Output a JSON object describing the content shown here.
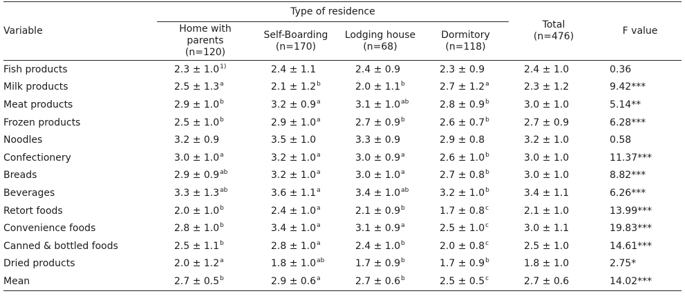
{
  "header": {
    "variable": "Variable",
    "group": "Type of residence",
    "col1": [
      "Home with",
      "parents",
      "(n=120)"
    ],
    "col2": [
      "Self-Boarding",
      "(n=170)"
    ],
    "col3": [
      "Lodging house",
      "(n=68)"
    ],
    "col4": [
      "Dormitory",
      "(n=118)"
    ],
    "total": [
      "Total",
      "(n=476)"
    ],
    "fvalue": "F value"
  },
  "rows": [
    {
      "variable": "Fish products",
      "c1": "2.3 ± 1.0",
      "s1": "1)",
      "c2": "2.4 ± 1.1",
      "s2": "",
      "c3": "2.4 ± 0.9",
      "s3": "",
      "c4": "2.3 ± 0.9",
      "s4": "",
      "total": "2.4 ± 1.0",
      "f": "0.36"
    },
    {
      "variable": "Milk products",
      "c1": "2.5 ± 1.3",
      "s1": "a",
      "c2": "2.1 ± 1.2",
      "s2": "b",
      "c3": "2.0 ± 1.1",
      "s3": "b",
      "c4": "2.7 ± 1.2",
      "s4": "a",
      "total": "2.3 ± 1.2",
      "f": "9.42***"
    },
    {
      "variable": "Meat products",
      "c1": "2.9 ± 1.0",
      "s1": "b",
      "c2": "3.2 ± 0.9",
      "s2": "a",
      "c3": "3.1 ± 1.0",
      "s3": "ab",
      "c4": "2.8 ± 0.9",
      "s4": "b",
      "total": "3.0 ± 1.0",
      "f": "5.14**"
    },
    {
      "variable": "Frozen products",
      "c1": "2.5 ± 1.0",
      "s1": "b",
      "c2": "2.9 ± 1.0",
      "s2": "a",
      "c3": "2.7 ± 0.9",
      "s3": "b",
      "c4": "2.6 ± 0.7",
      "s4": "b",
      "total": "2.7 ± 0.9",
      "f": "6.28***"
    },
    {
      "variable": "Noodles",
      "c1": "3.2 ± 0.9",
      "s1": "",
      "c2": "3.5 ± 1.0",
      "s2": "",
      "c3": "3.3 ± 0.9",
      "s3": "",
      "c4": "2.9 ± 0.8",
      "s4": "",
      "total": "3.2 ± 1.0",
      "f": "0.58"
    },
    {
      "variable": "Confectionery",
      "c1": "3.0 ± 1.0",
      "s1": "a",
      "c2": "3.2 ± 1.0",
      "s2": "a",
      "c3": "3.0 ± 0.9",
      "s3": "a",
      "c4": "2.6 ± 1.0",
      "s4": "b",
      "total": "3.0 ± 1.0",
      "f": "11.37***"
    },
    {
      "variable": "Breads",
      "c1": "2.9 ± 0.9",
      "s1": "ab",
      "c2": "3.2 ± 1.0",
      "s2": "a",
      "c3": "3.0 ± 1.0",
      "s3": "a",
      "c4": "2.7 ± 0.8",
      "s4": "b",
      "total": "3.0 ± 1.0",
      "f": "8.82***"
    },
    {
      "variable": "Beverages",
      "c1": "3.3 ± 1.3",
      "s1": "ab",
      "c2": "3.6 ± 1.1",
      "s2": "a",
      "c3": "3.4 ± 1.0",
      "s3": "ab",
      "c4": "3.2 ± 1.0",
      "s4": "b",
      "total": "3.4 ± 1.1",
      "f": "6.26***"
    },
    {
      "variable": "Retort foods",
      "c1": "2.0 ± 1.0",
      "s1": "b",
      "c2": "2.4 ± 1.0",
      "s2": "a",
      "c3": "2.1 ± 0.9",
      "s3": "b",
      "c4": "1.7 ± 0.8",
      "s4": "c",
      "total": "2.1 ± 1.0",
      "f": "13.99***"
    },
    {
      "variable": "Convenience foods",
      "c1": "2.8 ± 1.0",
      "s1": "b",
      "c2": "3.4 ± 1.0",
      "s2": "a",
      "c3": "3.1 ± 0.9",
      "s3": "a",
      "c4": "2.5 ± 1.0",
      "s4": "c",
      "total": "3.0 ± 1.1",
      "f": "19.83***"
    },
    {
      "variable": "Canned & bottled foods",
      "c1": "2.5 ± 1.1",
      "s1": "b",
      "c2": "2.8 ± 1.0",
      "s2": "a",
      "c3": "2.4 ± 1.0",
      "s3": "b",
      "c4": "2.0 ± 0.8",
      "s4": "c",
      "total": "2.5 ± 1.0",
      "f": "14.61***"
    },
    {
      "variable": "Dried products",
      "c1": "2.0 ± 1.2",
      "s1": "a",
      "c2": "1.8 ± 1.0",
      "s2": "ab",
      "c3": "1.7 ± 0.9",
      "s3": "b",
      "c4": "1.7 ± 0.9",
      "s4": "b",
      "total": "1.8 ± 1.0",
      "f": "2.75*"
    },
    {
      "variable": "Mean",
      "c1": "2.7 ± 0.5",
      "s1": "b",
      "c2": "2.9 ± 0.6",
      "s2": "a",
      "c3": "2.7 ± 0.6",
      "s3": "b",
      "c4": "2.5 ± 0.5",
      "s4": "c",
      "total": "2.7 ± 0.6",
      "f": "14.02***"
    }
  ]
}
